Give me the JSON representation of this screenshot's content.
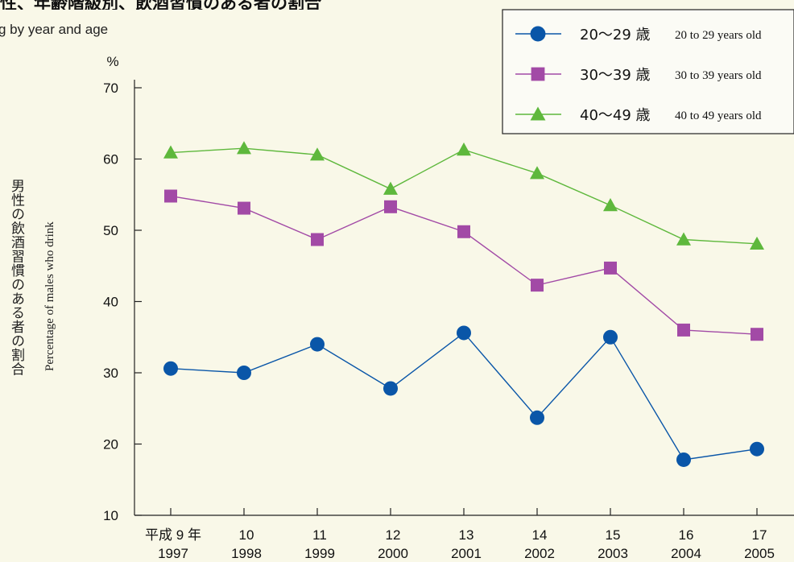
{
  "chart_data": {
    "type": "line",
    "title": "性、年齢階級別、飲酒習慣のある者の割合",
    "subtitle": "g by year and age",
    "y_unit": "%",
    "ylabel_jp": "男性の飲酒習慣のある者の割合",
    "ylabel_en": "Percentage of males who drink",
    "ylim": [
      10,
      70
    ],
    "yticks": [
      10,
      20,
      30,
      40,
      50,
      60,
      70
    ],
    "categories": [
      {
        "era": "平成 9 年",
        "year": "1997"
      },
      {
        "era": "10",
        "year": "1998"
      },
      {
        "era": "11",
        "year": "1999"
      },
      {
        "era": "12",
        "year": "2000"
      },
      {
        "era": "13",
        "year": "2001"
      },
      {
        "era": "14",
        "year": "2002"
      },
      {
        "era": "15",
        "year": "2003"
      },
      {
        "era": "16",
        "year": "2004"
      },
      {
        "era": "17",
        "year": "2005"
      }
    ],
    "series": [
      {
        "name_jp": "20〜29 歳",
        "name_en": "20 to 29 years old",
        "marker": "circle",
        "color": "#0a56a8",
        "values": [
          30.6,
          30.0,
          34.0,
          27.8,
          35.6,
          23.7,
          35.0,
          17.8,
          19.3
        ]
      },
      {
        "name_jp": "30〜39 歳",
        "name_en": "30 to 39 years old",
        "marker": "square",
        "color": "#a24aa6",
        "values": [
          54.8,
          53.1,
          48.7,
          53.3,
          49.8,
          42.3,
          44.7,
          36.0,
          35.4
        ]
      },
      {
        "name_jp": "40〜49 歳",
        "name_en": "40 to 49 years old",
        "marker": "triangle",
        "color": "#5eb83c",
        "values": [
          60.9,
          61.5,
          60.6,
          55.8,
          61.3,
          58.0,
          53.5,
          48.7,
          48.1
        ]
      }
    ],
    "legend_position": "top-right",
    "grid": false
  }
}
